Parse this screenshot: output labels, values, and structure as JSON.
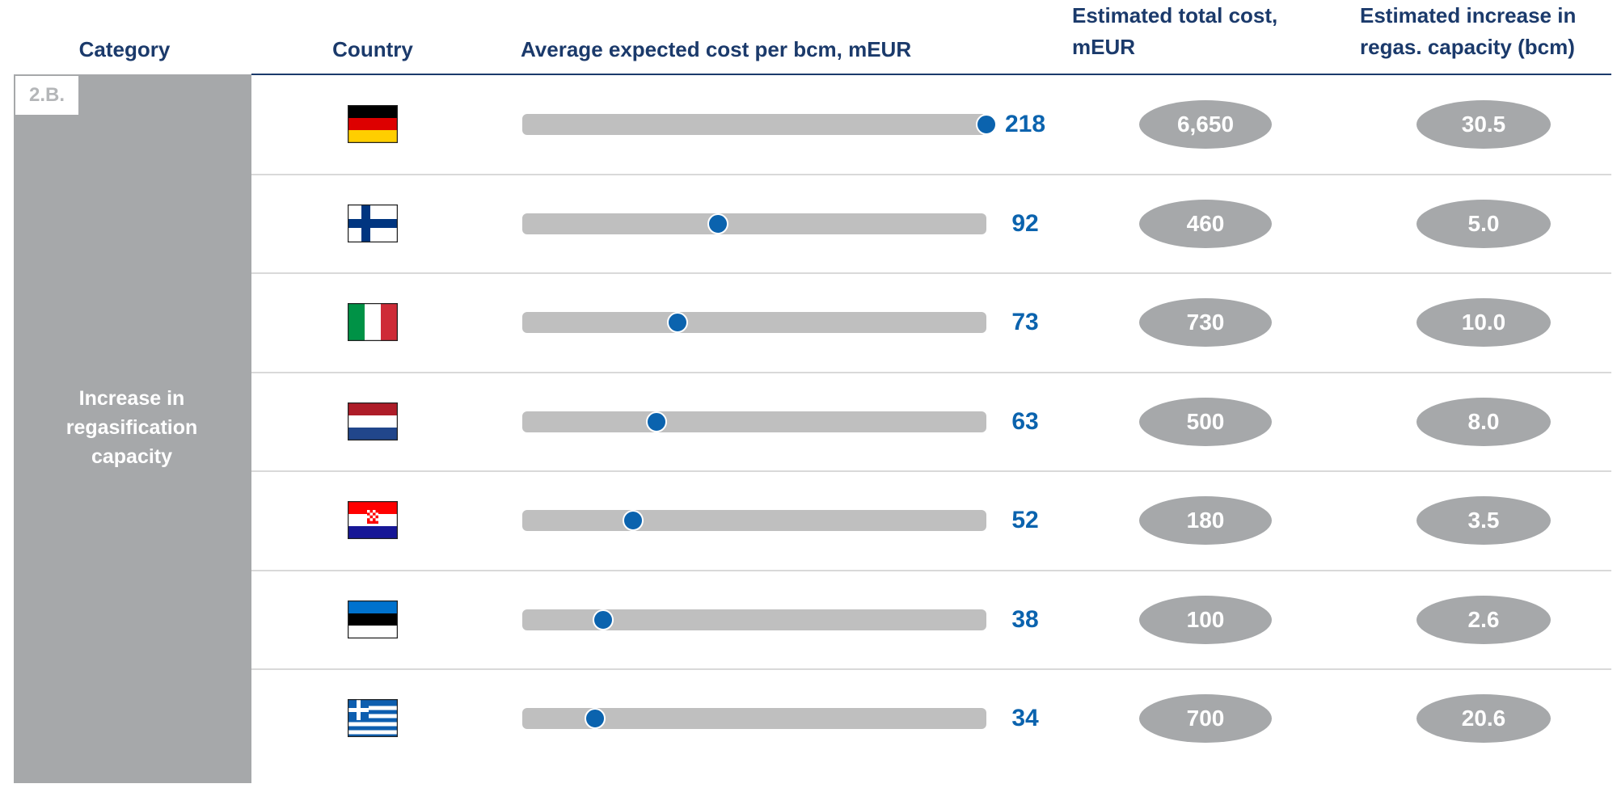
{
  "table": {
    "headers": {
      "category": "Category",
      "country": "Country",
      "avg_cost": "Average expected cost per bcm, mEUR",
      "total_cost": "Estimated total cost, mEUR",
      "increase": "Estimated increase in regas. capacity (bcm)"
    },
    "section_code": "2.B.",
    "category_label": "Increase in regasification capacity",
    "avg_cost_xlim": [
      0,
      218
    ],
    "avg_cost_color": "#0b63ae",
    "rows": [
      {
        "avg_cost": 218,
        "total_cost": "6,650",
        "increase": "30.5"
      },
      {
        "avg_cost": 92,
        "total_cost": "460",
        "increase": "5.0"
      },
      {
        "avg_cost": 73,
        "total_cost": "730",
        "increase": "10.0"
      },
      {
        "avg_cost": 63,
        "total_cost": "500",
        "increase": "8.0"
      },
      {
        "avg_cost": 52,
        "total_cost": "180",
        "increase": "3.5"
      },
      {
        "avg_cost": 38,
        "total_cost": "100",
        "increase": "2.6"
      },
      {
        "avg_cost": 34,
        "total_cost": "700",
        "increase": "20.6"
      }
    ]
  }
}
